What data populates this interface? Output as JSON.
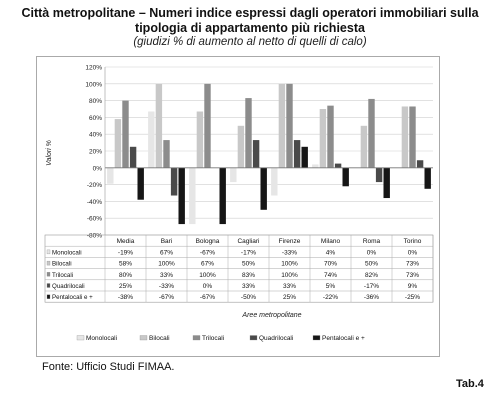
{
  "header": {
    "title_line1": "Città metropolitane – Numeri indice espressi dagli operatori immobiliari sulla",
    "title_line2": "tipologia di appartamento più richiesta",
    "subtitle": "(giudizi % di aumento al netto di quelli di calo)"
  },
  "footer": {
    "source": "Fonte: Ufficio Studi FIMAA.",
    "table_ref": "Tab.4"
  },
  "chart_data": {
    "type": "bar",
    "categories": [
      "Media",
      "Bari",
      "Bologna",
      "Cagliari",
      "Firenze",
      "Milano",
      "Roma",
      "Torino"
    ],
    "series": [
      {
        "name": "Monolocali",
        "values": [
          -19,
          67,
          -67,
          -17,
          -33,
          4,
          0,
          0
        ],
        "labels": [
          "-19%",
          "67%",
          "-67%",
          "-17%",
          "-33%",
          "4%",
          "0%",
          "0%"
        ],
        "color": "#e6e6e6"
      },
      {
        "name": "Bilocali",
        "values": [
          58,
          100,
          67,
          50,
          100,
          70,
          50,
          73
        ],
        "labels": [
          "58%",
          "100%",
          "67%",
          "50%",
          "100%",
          "70%",
          "50%",
          "73%"
        ],
        "color": "#c8c8c8"
      },
      {
        "name": "Trilocali",
        "values": [
          80,
          33,
          100,
          83,
          100,
          74,
          82,
          73
        ],
        "labels": [
          "80%",
          "33%",
          "100%",
          "83%",
          "100%",
          "74%",
          "82%",
          "73%"
        ],
        "color": "#8c8c8c"
      },
      {
        "name": "Quadrilocali",
        "values": [
          25,
          -33,
          0,
          33,
          33,
          5,
          -17,
          9
        ],
        "labels": [
          "25%",
          "-33%",
          "0%",
          "33%",
          "33%",
          "5%",
          "-17%",
          "9%"
        ],
        "color": "#4a4a4a"
      },
      {
        "name": "Pentalocali e +",
        "values": [
          -38,
          -67,
          -67,
          -50,
          25,
          -22,
          -36,
          -25
        ],
        "labels": [
          "-38%",
          "-67%",
          "-67%",
          "-50%",
          "25%",
          "-22%",
          "-36%",
          "-25%"
        ],
        "color": "#161616"
      }
    ],
    "ylim": [
      -80,
      120
    ],
    "yticks": [
      -80,
      -60,
      -40,
      -20,
      0,
      20,
      40,
      60,
      80,
      100,
      120
    ],
    "ytick_labels": [
      "-80%",
      "-60%",
      "-40%",
      "-20%",
      "0%",
      "20%",
      "40%",
      "60%",
      "80%",
      "100%",
      "120%"
    ],
    "ylabel": "Valori %",
    "xlabel": "Aree metropolitane",
    "grid": true,
    "legend_position": "bottom",
    "data_table": true
  }
}
